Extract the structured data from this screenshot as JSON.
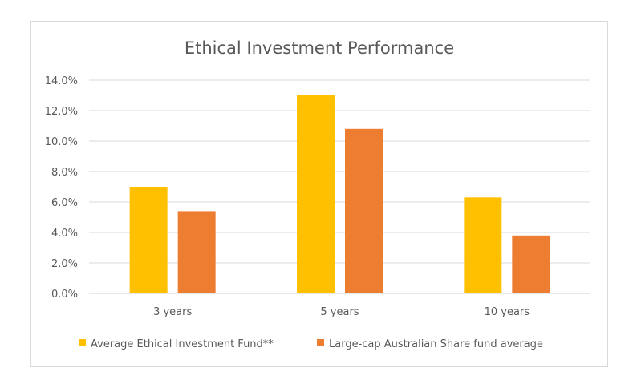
{
  "chart_data": {
    "type": "bar",
    "title": "Ethical Investment Performance",
    "categories": [
      "3 years",
      "5 years",
      "10 years"
    ],
    "series": [
      {
        "name": "Average Ethical Investment Fund**",
        "color": "#FFC000",
        "values": [
          7.0,
          13.0,
          6.3
        ]
      },
      {
        "name": "Large-cap Australian Share fund average",
        "color": "#ED7D31",
        "values": [
          5.4,
          10.8,
          3.8
        ]
      }
    ],
    "ylim": [
      0,
      14
    ],
    "yticks": [
      "0.0%",
      "2.0%",
      "4.0%",
      "6.0%",
      "8.0%",
      "10.0%",
      "12.0%",
      "14.0%"
    ],
    "grid": true,
    "legend_position": "bottom"
  }
}
